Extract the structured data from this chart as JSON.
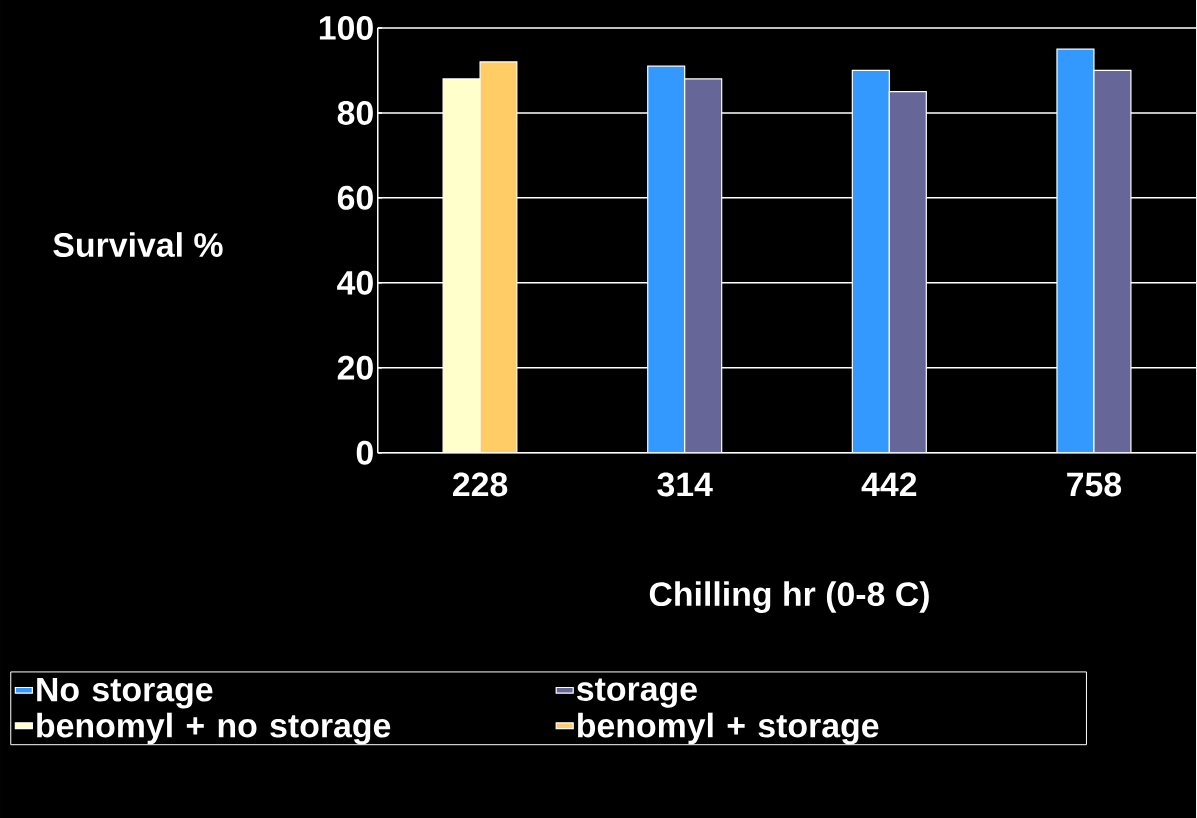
{
  "chart_data": {
    "type": "bar",
    "xlabel": "Chilling hr (0-8 C)",
    "ylabel": "Survival %",
    "categories": [
      "228",
      "314",
      "442",
      "758"
    ],
    "series": [
      {
        "name": "No storage",
        "color": "#3399ff",
        "values": [
          null,
          91,
          90,
          95
        ]
      },
      {
        "name": "storage",
        "color": "#666699",
        "values": [
          null,
          88,
          85,
          90
        ]
      },
      {
        "name": "benomyl + no storage",
        "color": "#ffffcc",
        "values": [
          88,
          null,
          null,
          null
        ]
      },
      {
        "name": "benomyl + storage",
        "color": "#ffcc66",
        "values": [
          92,
          null,
          null,
          null
        ]
      }
    ],
    "ylim": [
      0,
      100
    ],
    "yticks": [
      0,
      20,
      40,
      60,
      80,
      100
    ],
    "grid": "y",
    "legend": "bottom"
  }
}
